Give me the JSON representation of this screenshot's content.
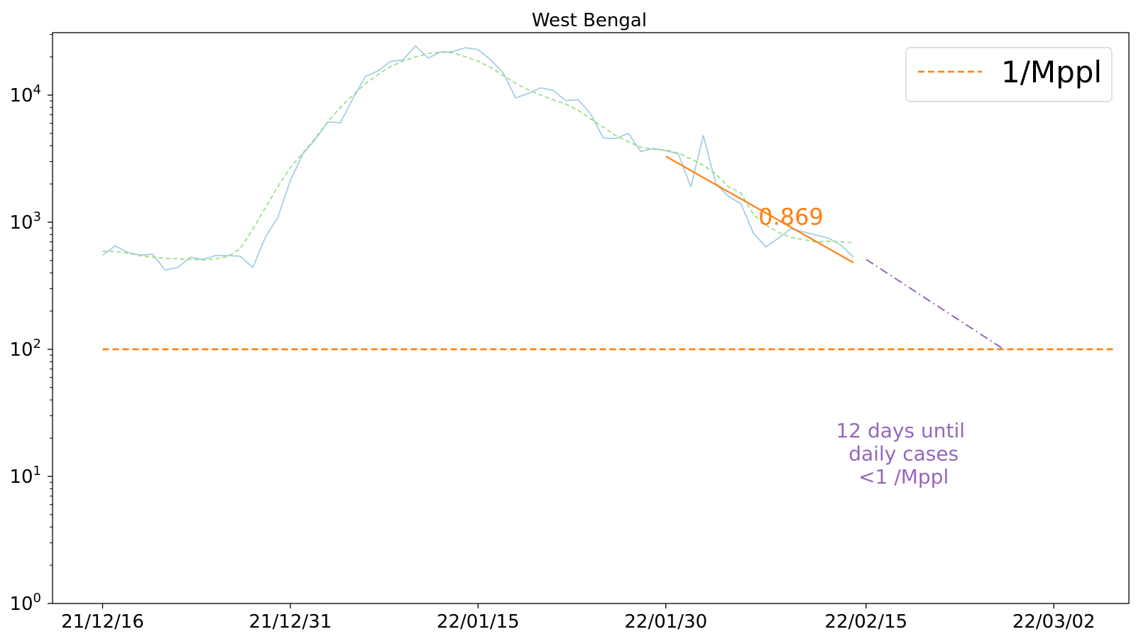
{
  "chart_data": {
    "type": "line",
    "title": "West Bengal",
    "xlabel": "",
    "ylabel": "",
    "yscale": "log",
    "ylim": [
      1,
      31000
    ],
    "xlim": [
      "2021-12-12",
      "2022-03-08"
    ],
    "grid": false,
    "legend": {
      "placement": "top-right",
      "entries": [
        {
          "label": "1/Mppl",
          "color": "#ff7f0e",
          "style": "dashed"
        }
      ]
    },
    "x_ticks": [
      {
        "date": "2021-12-16",
        "label": "21/12/16"
      },
      {
        "date": "2021-12-31",
        "label": "21/12/31"
      },
      {
        "date": "2022-01-15",
        "label": "22/01/15"
      },
      {
        "date": "2022-01-30",
        "label": "22/01/30"
      },
      {
        "date": "2022-02-15",
        "label": "22/02/15"
      },
      {
        "date": "2022-03-02",
        "label": "22/03/02"
      }
    ],
    "y_ticks": [
      {
        "value": 1,
        "base": "10",
        "exp": "0"
      },
      {
        "value": 10,
        "base": "10",
        "exp": "1"
      },
      {
        "value": 100,
        "base": "10",
        "exp": "2"
      },
      {
        "value": 1000,
        "base": "10",
        "exp": "3"
      },
      {
        "value": 10000,
        "base": "10",
        "exp": "4"
      }
    ],
    "series": [
      {
        "key": "daily",
        "color": "#a6cee3",
        "style": "solid",
        "x": [
          "2021-12-16",
          "2021-12-17",
          "2021-12-18",
          "2021-12-19",
          "2021-12-20",
          "2021-12-21",
          "2021-12-22",
          "2021-12-23",
          "2021-12-24",
          "2021-12-25",
          "2021-12-26",
          "2021-12-27",
          "2021-12-28",
          "2021-12-29",
          "2021-12-30",
          "2021-12-31",
          "2022-01-01",
          "2022-01-02",
          "2022-01-03",
          "2022-01-04",
          "2022-01-05",
          "2022-01-06",
          "2022-01-07",
          "2022-01-08",
          "2022-01-09",
          "2022-01-10",
          "2022-01-11",
          "2022-01-12",
          "2022-01-13",
          "2022-01-14",
          "2022-01-15",
          "2022-01-16",
          "2022-01-17",
          "2022-01-18",
          "2022-01-19",
          "2022-01-20",
          "2022-01-21",
          "2022-01-22",
          "2022-01-23",
          "2022-01-24",
          "2022-01-25",
          "2022-01-26",
          "2022-01-27",
          "2022-01-28",
          "2022-01-29",
          "2022-01-30",
          "2022-01-31",
          "2022-02-01",
          "2022-02-02",
          "2022-02-03",
          "2022-02-04",
          "2022-02-05",
          "2022-02-06",
          "2022-02-07",
          "2022-02-08",
          "2022-02-09",
          "2022-02-10",
          "2022-02-11",
          "2022-02-12",
          "2022-02-13",
          "2022-02-14"
        ],
        "y": [
          550,
          650,
          580,
          550,
          560,
          420,
          440,
          530,
          510,
          545,
          545,
          540,
          440,
          760,
          1090,
          2130,
          3450,
          4500,
          6150,
          6050,
          9400,
          14000,
          15500,
          18400,
          18900,
          24400,
          19600,
          21800,
          22000,
          23600,
          22800,
          19000,
          15000,
          9500,
          10300,
          11400,
          10900,
          9050,
          9200,
          7100,
          4600,
          4550,
          5000,
          3600,
          3800,
          3650,
          3450,
          1900,
          4800,
          2000,
          1600,
          1400,
          820,
          640,
          750,
          890,
          840,
          790,
          750,
          660,
          530
        ]
      },
      {
        "key": "smoothed",
        "color": "#98df8a",
        "style": "dashed",
        "x": [
          "2021-12-16",
          "2021-12-17",
          "2021-12-18",
          "2021-12-19",
          "2021-12-20",
          "2021-12-21",
          "2021-12-22",
          "2021-12-23",
          "2021-12-24",
          "2021-12-25",
          "2021-12-26",
          "2021-12-27",
          "2021-12-28",
          "2021-12-29",
          "2021-12-30",
          "2021-12-31",
          "2022-01-01",
          "2022-01-02",
          "2022-01-03",
          "2022-01-04",
          "2022-01-05",
          "2022-01-06",
          "2022-01-07",
          "2022-01-08",
          "2022-01-09",
          "2022-01-10",
          "2022-01-11",
          "2022-01-12",
          "2022-01-13",
          "2022-01-14",
          "2022-01-15",
          "2022-01-16",
          "2022-01-17",
          "2022-01-18",
          "2022-01-19",
          "2022-01-20",
          "2022-01-21",
          "2022-01-22",
          "2022-01-23",
          "2022-01-24",
          "2022-01-25",
          "2022-01-26",
          "2022-01-27",
          "2022-01-28",
          "2022-01-29",
          "2022-01-30",
          "2022-01-31",
          "2022-02-01",
          "2022-02-02",
          "2022-02-03",
          "2022-02-04",
          "2022-02-05",
          "2022-02-06",
          "2022-02-07",
          "2022-02-08",
          "2022-02-09",
          "2022-02-10",
          "2022-02-11",
          "2022-02-12",
          "2022-02-13",
          "2022-02-14"
        ],
        "y": [
          590,
          590,
          570,
          545,
          530,
          520,
          515,
          510,
          505,
          515,
          535,
          620,
          880,
          1300,
          1900,
          2700,
          3500,
          4600,
          6200,
          8000,
          10000,
          12300,
          14500,
          16800,
          18500,
          20000,
          21200,
          21800,
          21500,
          20000,
          18500,
          16500,
          14300,
          12400,
          11000,
          10000,
          9200,
          8500,
          7600,
          6500,
          5600,
          4800,
          4300,
          3900,
          3750,
          3700,
          3500,
          3150,
          2800,
          2400,
          1900,
          1700,
          1150,
          950,
          830,
          760,
          730,
          700,
          710,
          700,
          690
        ]
      },
      {
        "key": "fit",
        "color": "#ff7f0e",
        "style": "solid",
        "x": [
          "2022-01-30",
          "2022-02-14"
        ],
        "y": [
          3300,
          480
        ]
      },
      {
        "key": "projection",
        "color": "#9467bd",
        "style": "dashdot",
        "x": [
          "2022-02-15",
          "2022-02-26"
        ],
        "y": [
          510,
          100
        ]
      },
      {
        "key": "threshold",
        "name": "1/Mppl",
        "color": "#ff7f0e",
        "style": "dashed",
        "x": [
          "2021-12-16",
          "2022-03-07"
        ],
        "y": [
          100,
          100
        ]
      }
    ],
    "annotations": [
      {
        "key": "ratio",
        "text": "0.869",
        "x": "2022-02-09",
        "y": 1100,
        "color": "#ff7f0e",
        "lines": [
          "0.869"
        ]
      },
      {
        "key": "until",
        "text": "12 days until\n daily cases\n<1 /Mppl",
        "x": "2022-02-18",
        "y": 12,
        "color": "#9467bd",
        "lines": [
          "12 days until",
          " daily cases",
          "<1 /Mppl"
        ]
      }
    ]
  }
}
